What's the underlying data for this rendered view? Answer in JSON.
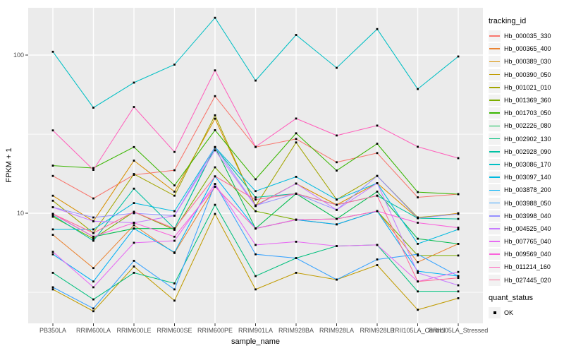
{
  "chart_data": {
    "type": "line",
    "title": "",
    "xlabel": "sample_name",
    "ylabel": "FPKM + 1",
    "y_scale": "log10",
    "y_ticks": [
      10,
      100
    ],
    "y_minor_ticks": [
      3.16,
      31.6
    ],
    "ylim": [
      2.0,
      200
    ],
    "grid": "on",
    "panel_bg": "#EBEBEB",
    "grid_color": "#FFFFFF",
    "tick_text_color": "#4D4D4D",
    "point_color": "#000000",
    "legend": {
      "title": "tracking_id",
      "position": "right"
    },
    "quant_legend": {
      "title": "quant_status",
      "items": [
        "OK"
      ]
    },
    "categories": [
      "PB350LA",
      "RRIM600LA",
      "RRIM600LE",
      "RRIM600SE",
      "RRIM600PE",
      "RRIM901LA",
      "RRIM928BA",
      "RRIM928LA",
      "RRIM928LB",
      "RRII105LA_Control",
      "RRII105LA_Stressed"
    ],
    "series": [
      {
        "name": "Hb_000035_330",
        "color": "#F8766D",
        "values": [
          17.2,
          12.4,
          17.5,
          18.7,
          55,
          26.2,
          29.5,
          21,
          24,
          12.6,
          13.2
        ]
      },
      {
        "name": "Hb_000365_400",
        "color": "#EA8331",
        "values": [
          7.3,
          4.5,
          8.4,
          5.6,
          14.7,
          8.0,
          9.1,
          8.5,
          10.3,
          4.9,
          6.4
        ]
      },
      {
        "name": "Hb_000389_030",
        "color": "#D89000",
        "values": [
          12.9,
          8.9,
          21.5,
          13.7,
          39.6,
          11.2,
          15.4,
          11.3,
          15.5,
          9.3,
          10.0
        ]
      },
      {
        "name": "Hb_000390_050",
        "color": "#C09B00",
        "values": [
          3.3,
          2.4,
          4.6,
          2.8,
          9.9,
          3.3,
          4.2,
          3.8,
          4.7,
          2.45,
          2.9
        ]
      },
      {
        "name": "Hb_001021_010",
        "color": "#A3A500",
        "values": [
          12.0,
          7.5,
          17.7,
          12.9,
          41.6,
          11.1,
          28,
          12.2,
          17.2,
          9.4,
          9.9
        ]
      },
      {
        "name": "Hb_001369_360",
        "color": "#7CAE00",
        "values": [
          9.5,
          6.9,
          10.2,
          7.85,
          19.5,
          10.3,
          9.1,
          9.2,
          10.3,
          5.4,
          5.4
        ]
      },
      {
        "name": "Hb_001703_050",
        "color": "#39B600",
        "values": [
          20,
          19.3,
          26.2,
          15,
          33.5,
          16.4,
          32,
          18.6,
          27.5,
          13.6,
          13.2
        ]
      },
      {
        "name": "Hb_002226_080",
        "color": "#00BB4E",
        "values": [
          9.9,
          7.1,
          8.0,
          8.0,
          26.2,
          8.0,
          13.3,
          9.2,
          13.7,
          6.9,
          6.4
        ]
      },
      {
        "name": "Hb_002902_130",
        "color": "#00BF7D",
        "values": [
          4.2,
          2.85,
          4.2,
          3.6,
          11.3,
          4.0,
          5.2,
          6.2,
          6.3,
          3.2,
          3.2
        ]
      },
      {
        "name": "Hb_002928_090",
        "color": "#00C1A3",
        "values": [
          9.7,
          6.7,
          14.3,
          8.0,
          26,
          12.6,
          13.3,
          11.3,
          12.9,
          9.3,
          9.2
        ]
      },
      {
        "name": "Hb_003086_170",
        "color": "#00BFC4",
        "values": [
          105,
          46.5,
          67,
          87,
          172,
          69,
          134,
          83,
          146,
          61,
          98
        ]
      },
      {
        "name": "Hb_003097_140",
        "color": "#00BAE0",
        "values": [
          7.9,
          7.9,
          11.6,
          10.3,
          26.2,
          13.8,
          17,
          12.2,
          15.5,
          6.4,
          7.9
        ]
      },
      {
        "name": "Hb_003878_200",
        "color": "#00B0F6",
        "values": [
          5.5,
          3.7,
          8.0,
          5.65,
          17.1,
          8.0,
          9.1,
          8.5,
          10.3,
          4.3,
          4.0
        ]
      },
      {
        "name": "Hb_003988_050",
        "color": "#35A2FF",
        "values": [
          3.4,
          2.5,
          5.0,
          3.3,
          15.3,
          5.5,
          5.2,
          3.8,
          5.1,
          5.5,
          4.0
        ]
      },
      {
        "name": "Hb_003998_040",
        "color": "#9590FF",
        "values": [
          10.9,
          9.4,
          10.0,
          9.65,
          26.2,
          11.2,
          13.3,
          10.5,
          17.2,
          9.3,
          9.9
        ]
      },
      {
        "name": "Hb_004525_040",
        "color": "#C77CFF",
        "values": [
          10.9,
          8.9,
          8.7,
          9.65,
          25,
          11.1,
          15.4,
          10.5,
          15.5,
          4.2,
          3.5
        ]
      },
      {
        "name": "Hb_007765_040",
        "color": "#E76BF3",
        "values": [
          5.7,
          3.4,
          6.5,
          6.7,
          15.3,
          6.3,
          6.6,
          6.2,
          6.3,
          3.7,
          4.25
        ]
      },
      {
        "name": "Hb_009569_040",
        "color": "#FA62DB",
        "values": [
          9.9,
          7.1,
          8.7,
          7.1,
          14.7,
          8.0,
          9.1,
          9.2,
          10.3,
          8.7,
          8.1
        ]
      },
      {
        "name": "Hb_011214_160",
        "color": "#FF62BC",
        "values": [
          33.4,
          18.8,
          47,
          24.4,
          80,
          26.3,
          39.7,
          31,
          35.8,
          26.3,
          22.3
        ]
      },
      {
        "name": "Hb_027445_020",
        "color": "#FF6A98",
        "values": [
          9.9,
          7.5,
          10.2,
          8.0,
          17.1,
          12.2,
          13.3,
          11.3,
          12.9,
          3.7,
          3.9
        ]
      }
    ]
  }
}
